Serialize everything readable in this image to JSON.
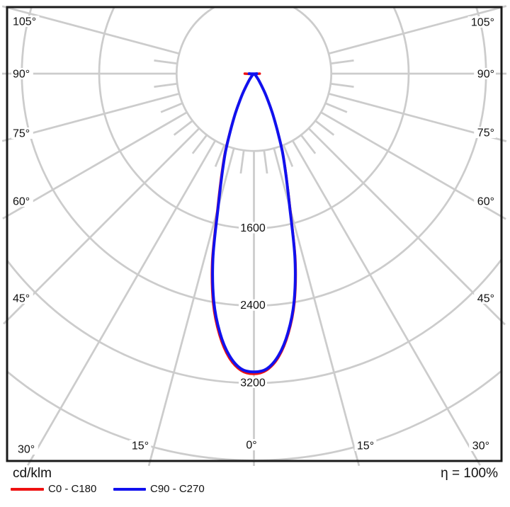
{
  "footer": {
    "unit_label": "cd/klm",
    "efficiency_label": "η = 100%"
  },
  "legend": [
    {
      "label": "C0 - C180",
      "color": "#ee1111"
    },
    {
      "label": "C90 - C270",
      "color": "#1111ee"
    }
  ],
  "chart_data": {
    "type": "line",
    "subtype": "polar-photometric-intensity-distribution",
    "units": "cd/klm",
    "efficiency": "η = 100%",
    "peak_intensity_cd_klm": 3105,
    "grid": {
      "color": "#cccccc",
      "frame_color": "#1a1a1a",
      "circle_values": [
        800,
        1600,
        2400,
        3200,
        4000
      ],
      "major_spoke_step_deg": 15,
      "minor_tick_step_deg": 7.5,
      "max_angle_deg": 105
    },
    "radial_value_labels": [
      "1600",
      "2400",
      "3200"
    ],
    "angle_labels": {
      "left": [
        "105°",
        "90°",
        "75°",
        "60°",
        "45°",
        "30°"
      ],
      "right": [
        "105°",
        "90°",
        "75°",
        "60°",
        "45°",
        "30°"
      ],
      "bottom": [
        "15°",
        "0°",
        "15°"
      ]
    },
    "gamma_deg": [
      0,
      2.5,
      5,
      7.5,
      10,
      12.5,
      15,
      17.5,
      20,
      22.5,
      25,
      27.5,
      30,
      35,
      40,
      45,
      50,
      55,
      60,
      65,
      70,
      75,
      80,
      85,
      90
    ],
    "series": [
      {
        "name": "C0 - C180",
        "color": "#ee1111",
        "left": [
          3105,
          3072,
          2948,
          2726,
          2420,
          1992,
          1458,
          1124,
          880,
          641,
          467,
          324,
          225,
          100,
          45,
          21,
          12,
          8,
          6,
          5,
          5,
          6,
          15,
          40,
          95
        ],
        "right": [
          3105,
          3068,
          2940,
          2715,
          2408,
          1978,
          1445,
          1112,
          870,
          632,
          460,
          319,
          221,
          98,
          44,
          20,
          11,
          7,
          5,
          4,
          4,
          5,
          10,
          25,
          60
        ]
      },
      {
        "name": "C90 - C270",
        "color": "#1111ee",
        "left": [
          3085,
          3055,
          2925,
          2700,
          2390,
          1960,
          1430,
          1100,
          860,
          625,
          455,
          315,
          218,
          96,
          43,
          20,
          11,
          7,
          5,
          4,
          4,
          6,
          10,
          25,
          50
        ],
        "right": [
          3085,
          3055,
          2925,
          2700,
          2390,
          1960,
          1430,
          1100,
          860,
          625,
          455,
          315,
          218,
          96,
          43,
          20,
          11,
          7,
          5,
          4,
          4,
          5,
          8,
          15,
          30
        ]
      }
    ]
  }
}
